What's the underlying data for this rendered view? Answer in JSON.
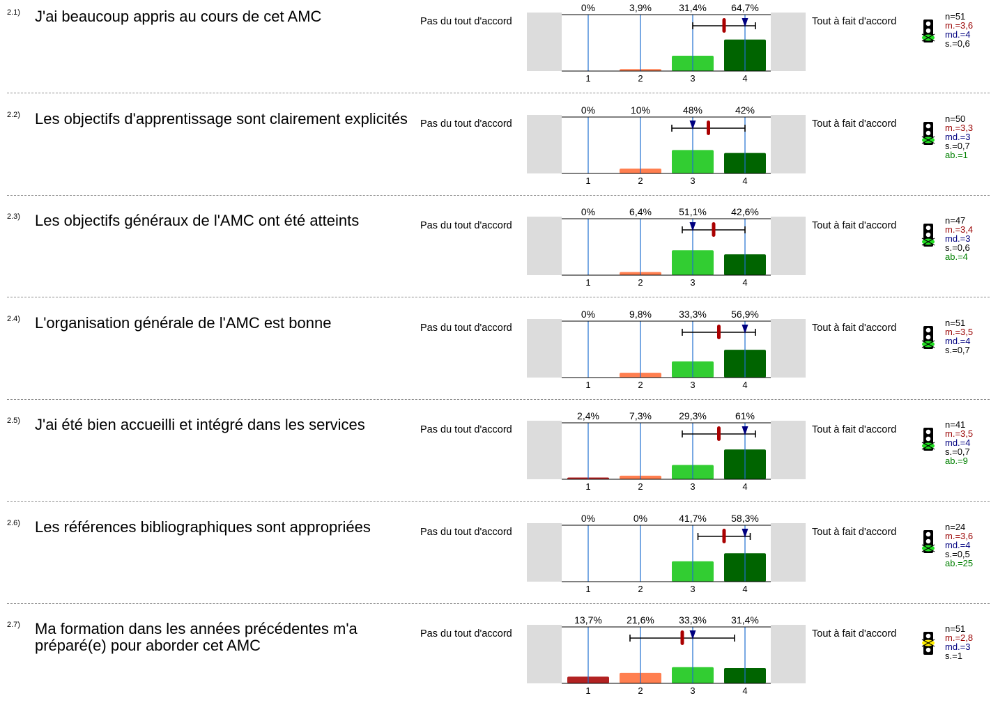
{
  "scale": {
    "left_label": "Pas du tout d'accord",
    "right_label": "Tout à fait d'accord",
    "ticks": [
      "1",
      "2",
      "3",
      "4"
    ]
  },
  "colors": {
    "scale_1": "#b22222",
    "scale_2": "#ff7f50",
    "scale_3": "#32cd32",
    "scale_4": "#006400",
    "mean_marker": "#aa0000",
    "median_marker": "#000080",
    "side_panel": "#dcdcdc",
    "gridline": "#1f6fd0"
  },
  "chart_data": [
    {
      "type": "bar",
      "number": "2.1)",
      "question": "J'ai beaucoup appris au cours de cet AMC",
      "categories": [
        "1",
        "2",
        "3",
        "4"
      ],
      "values": [
        0,
        3.9,
        31.4,
        64.7
      ],
      "pct_labels": [
        "0%",
        "3,9%",
        "31,4%",
        "64,7%"
      ],
      "mean": 3.6,
      "median": 4,
      "sd": 0.6,
      "stats": {
        "n": "n=51",
        "m": "m.=3,6",
        "md": "md.=4",
        "s": "s.=0,6",
        "ab": ""
      },
      "light": "green"
    },
    {
      "type": "bar",
      "number": "2.2)",
      "question": "Les objectifs d'apprentissage sont  clairement explicités",
      "categories": [
        "1",
        "2",
        "3",
        "4"
      ],
      "values": [
        0,
        10,
        48,
        42
      ],
      "pct_labels": [
        "0%",
        "10%",
        "48%",
        "42%"
      ],
      "mean": 3.3,
      "median": 3,
      "sd": 0.7,
      "stats": {
        "n": "n=50",
        "m": "m.=3,3",
        "md": "md.=3",
        "s": "s.=0,7",
        "ab": "ab.=1"
      },
      "light": "green"
    },
    {
      "type": "bar",
      "number": "2.3)",
      "question": "Les objectifs généraux de l'AMC ont été atteints",
      "categories": [
        "1",
        "2",
        "3",
        "4"
      ],
      "values": [
        0,
        6.4,
        51.1,
        42.6
      ],
      "pct_labels": [
        "0%",
        "6,4%",
        "51,1%",
        "42,6%"
      ],
      "mean": 3.4,
      "median": 3,
      "sd": 0.6,
      "stats": {
        "n": "n=47",
        "m": "m.=3,4",
        "md": "md.=3",
        "s": "s.=0,6",
        "ab": "ab.=4"
      },
      "light": "green"
    },
    {
      "type": "bar",
      "number": "2.4)",
      "question": "L'organisation générale de l'AMC est bonne",
      "categories": [
        "1",
        "2",
        "3",
        "4"
      ],
      "values": [
        0,
        9.8,
        33.3,
        56.9
      ],
      "pct_labels": [
        "0%",
        "9,8%",
        "33,3%",
        "56,9%"
      ],
      "mean": 3.5,
      "median": 4,
      "sd": 0.7,
      "stats": {
        "n": "n=51",
        "m": "m.=3,5",
        "md": "md.=4",
        "s": "s.=0,7",
        "ab": ""
      },
      "light": "green"
    },
    {
      "type": "bar",
      "number": "2.5)",
      "question": "J'ai été bien accueilli et intégré dans les services",
      "categories": [
        "1",
        "2",
        "3",
        "4"
      ],
      "values": [
        2.4,
        7.3,
        29.3,
        61
      ],
      "pct_labels": [
        "2,4%",
        "7,3%",
        "29,3%",
        "61%"
      ],
      "mean": 3.5,
      "median": 4,
      "sd": 0.7,
      "stats": {
        "n": "n=41",
        "m": "m.=3,5",
        "md": "md.=4",
        "s": "s.=0,7",
        "ab": "ab.=9"
      },
      "light": "green"
    },
    {
      "type": "bar",
      "number": "2.6)",
      "question": "Les références bibliographiques sont appropriées",
      "categories": [
        "1",
        "2",
        "3",
        "4"
      ],
      "values": [
        0,
        0,
        41.7,
        58.3
      ],
      "pct_labels": [
        "0%",
        "0%",
        "41,7%",
        "58,3%"
      ],
      "mean": 3.6,
      "median": 4,
      "sd": 0.5,
      "stats": {
        "n": "n=24",
        "m": "m.=3,6",
        "md": "md.=4",
        "s": "s.=0,5",
        "ab": "ab.=25"
      },
      "light": "green"
    },
    {
      "type": "bar",
      "number": "2.7)",
      "question": "Ma formation dans les années précédentes m'a préparé(e) pour aborder cet AMC",
      "categories": [
        "1",
        "2",
        "3",
        "4"
      ],
      "values": [
        13.7,
        21.6,
        33.3,
        31.4
      ],
      "pct_labels": [
        "13,7%",
        "21,6%",
        "33,3%",
        "31,4%"
      ],
      "mean": 2.8,
      "median": 3,
      "sd": 1,
      "stats": {
        "n": "n=51",
        "m": "m.=2,8",
        "md": "md.=3",
        "s": "s.=1",
        "ab": ""
      },
      "light": "yellow"
    }
  ]
}
